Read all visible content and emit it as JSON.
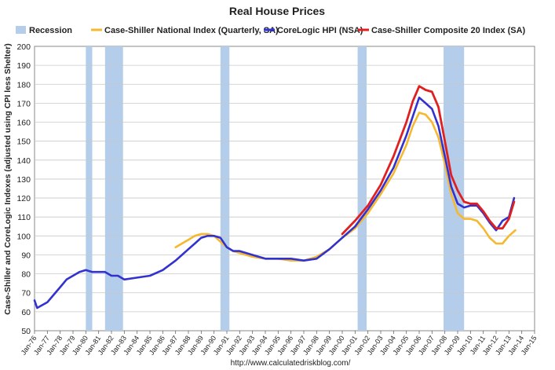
{
  "chart_data": {
    "type": "line",
    "title": "Real House Prices",
    "ylabel": "Case-Shiller and CoreLogic Indexes (adjusted using CPI less Shelter)",
    "xlabel": "",
    "source": "http://www.calculatedriskblog.com/",
    "ylim": [
      50,
      200
    ],
    "yticks": [
      50,
      60,
      70,
      80,
      90,
      100,
      110,
      120,
      130,
      140,
      150,
      160,
      170,
      180,
      190,
      200
    ],
    "xlim": [
      1976,
      2015
    ],
    "xticks": [
      "Jan-76",
      "Jan-77",
      "Jan-78",
      "Jan-79",
      "Jan-80",
      "Jan-81",
      "Jan-82",
      "Jan-83",
      "Jan-84",
      "Jan-85",
      "Jan-86",
      "Jan-87",
      "Jan-88",
      "Jan-89",
      "Jan-90",
      "Jan-91",
      "Jan-92",
      "Jan-93",
      "Jan-94",
      "Jan-95",
      "Jan-96",
      "Jan-97",
      "Jan-98",
      "Jan-99",
      "Jan-00",
      "Jan-01",
      "Jan-02",
      "Jan-03",
      "Jan-04",
      "Jan-05",
      "Jan-06",
      "Jan-07",
      "Jan-08",
      "Jan-09",
      "Jan-10",
      "Jan-11",
      "Jan-12",
      "Jan-13",
      "Jan-14",
      "Jan-15"
    ],
    "grid": true,
    "legend_position": "top",
    "recessions": {
      "name": "Recession",
      "color": "#b3cdea",
      "periods": [
        [
          1980.0,
          1980.5
        ],
        [
          1981.5,
          1982.9
        ],
        [
          1990.5,
          1991.2
        ],
        [
          2001.2,
          2001.9
        ],
        [
          2007.9,
          2009.5
        ]
      ]
    },
    "series": [
      {
        "name": "Case-Shiller National Index (Quarterly, SA)",
        "color": "#f5b82e",
        "width": 2.6,
        "x": [
          1987.0,
          1987.5,
          1988.0,
          1988.5,
          1989.0,
          1989.5,
          1990.0,
          1990.5,
          1991.0,
          1991.5,
          1992.0,
          1992.5,
          1993.0,
          1994.0,
          1995.0,
          1996.0,
          1997.0,
          1998.0,
          1999.0,
          2000.0,
          2001.0,
          2002.0,
          2003.0,
          2004.0,
          2005.0,
          2005.5,
          2006.0,
          2006.5,
          2007.0,
          2007.5,
          2008.0,
          2008.5,
          2009.0,
          2009.5,
          2010.0,
          2010.5,
          2011.0,
          2011.5,
          2012.0,
          2012.5,
          2013.0,
          2013.5
        ],
        "y": [
          94,
          96,
          98,
          100,
          101,
          101,
          100,
          97,
          94,
          92,
          91,
          90,
          89,
          88,
          88,
          87,
          87,
          89,
          93,
          99,
          104,
          112,
          122,
          133,
          148,
          158,
          165,
          164,
          160,
          152,
          138,
          122,
          112,
          109,
          109,
          108,
          104,
          99,
          96,
          96,
          100,
          103
        ]
      },
      {
        "name": "CoreLogic HPI (NSA)",
        "color": "#3232d0",
        "width": 2.6,
        "x": [
          1976.0,
          1976.2,
          1977.0,
          1977.5,
          1978.0,
          1978.5,
          1979.0,
          1979.5,
          1980.0,
          1980.5,
          1981.0,
          1981.5,
          1982.0,
          1982.5,
          1983.0,
          1984.0,
          1985.0,
          1986.0,
          1987.0,
          1987.5,
          1988.0,
          1988.5,
          1989.0,
          1989.5,
          1990.0,
          1990.5,
          1991.0,
          1991.5,
          1992.0,
          1993.0,
          1994.0,
          1995.0,
          1996.0,
          1997.0,
          1998.0,
          1999.0,
          2000.0,
          2001.0,
          2002.0,
          2003.0,
          2004.0,
          2005.0,
          2005.5,
          2006.0,
          2006.5,
          2007.0,
          2007.5,
          2008.0,
          2008.5,
          2009.0,
          2009.5,
          2010.0,
          2010.5,
          2011.0,
          2011.5,
          2012.0,
          2012.5,
          2013.0,
          2013.4
        ],
        "y": [
          66,
          62,
          65,
          69,
          73,
          77,
          79,
          81,
          82,
          81,
          81,
          81,
          79,
          79,
          77,
          78,
          79,
          82,
          87,
          90,
          93,
          96,
          99,
          100,
          100,
          99,
          94,
          92,
          92,
          90,
          88,
          88,
          88,
          87,
          88,
          93,
          99,
          105,
          114,
          124,
          136,
          153,
          163,
          173,
          170,
          167,
          158,
          142,
          126,
          117,
          115,
          116,
          116,
          112,
          107,
          103,
          108,
          110,
          120
        ]
      },
      {
        "name": "Case-Shiller Composite 20 Index (SA)",
        "color": "#e02020",
        "width": 2.8,
        "x": [
          2000.0,
          2001.0,
          2002.0,
          2003.0,
          2004.0,
          2005.0,
          2005.5,
          2006.0,
          2006.5,
          2007.0,
          2007.5,
          2008.0,
          2008.5,
          2009.0,
          2009.5,
          2010.0,
          2010.5,
          2011.0,
          2011.5,
          2012.0,
          2012.5,
          2013.0,
          2013.4
        ],
        "y": [
          101,
          108,
          116,
          127,
          142,
          160,
          171,
          179,
          177,
          176,
          168,
          150,
          132,
          124,
          118,
          117,
          117,
          113,
          108,
          104,
          104,
          109,
          118
        ]
      }
    ]
  }
}
